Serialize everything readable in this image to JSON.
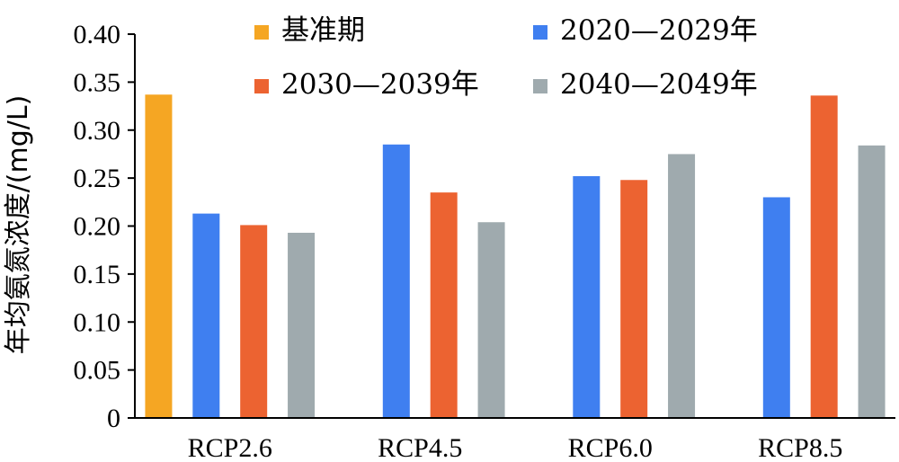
{
  "chart_data": {
    "type": "bar",
    "ylabel": "年均氨氮浓度/(mg/L)",
    "xlabel": "",
    "ylim": [
      0,
      0.4
    ],
    "yticks": [
      "0",
      "0.05",
      "0.10",
      "0.15",
      "0.20",
      "0.25",
      "0.30",
      "0.35",
      "0.40"
    ],
    "categories": [
      "RCP2.6",
      "RCP4.5",
      "RCP6.0",
      "RCP8.5"
    ],
    "legend_position": "top",
    "grid": false,
    "series": [
      {
        "name": "基准期",
        "color": "#F5A623",
        "values": [
          0.337,
          null,
          null,
          null
        ]
      },
      {
        "name": "2020—2029年",
        "color": "#3F7FF0",
        "values": [
          0.213,
          0.285,
          0.252,
          0.23
        ]
      },
      {
        "name": "2030—2039年",
        "color": "#EC6331",
        "values": [
          0.201,
          0.235,
          0.248,
          0.336
        ]
      },
      {
        "name": "2040—2049年",
        "color": "#9FAAAE",
        "values": [
          0.193,
          0.204,
          0.275,
          0.284
        ]
      }
    ]
  }
}
